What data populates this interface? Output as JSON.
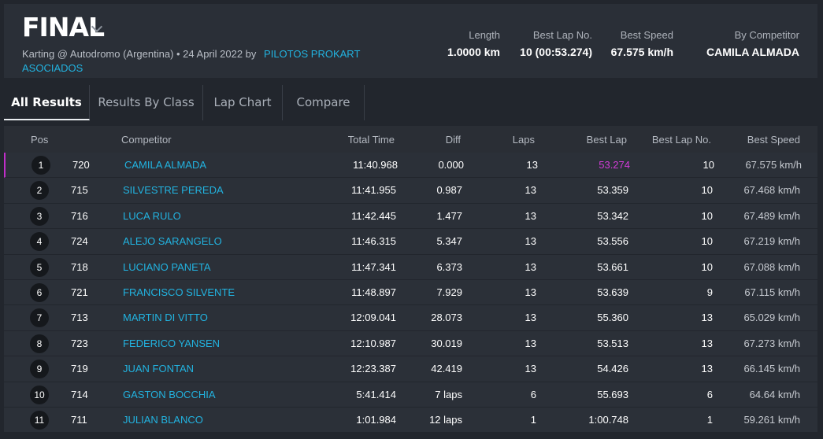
{
  "header": {
    "title": "FINAL",
    "subtitle": "Karting @ Autodromo (Argentina) • 24 April 2022 by",
    "organizer": "PILOTOS PROKART ASOCIADOS",
    "stats": [
      {
        "label": "Length",
        "value": "1.0000 km"
      },
      {
        "label": "Best Lap No.",
        "value": "10 (00:53.274)"
      },
      {
        "label": "Best Speed",
        "value": "67.575 km/h"
      },
      {
        "label": "By Competitor",
        "value": "CAMILA ALMADA"
      }
    ]
  },
  "tabs": [
    "All Results",
    "Results By Class",
    "Lap Chart",
    "Compare"
  ],
  "columns": {
    "pos": "Pos",
    "competitor": "Competitor",
    "total": "Total Time",
    "diff": "Diff",
    "laps": "Laps",
    "best": "Best Lap",
    "bestno": "Best Lap No.",
    "speed": "Best Speed"
  },
  "rows": [
    {
      "pos": "1",
      "num": "720",
      "name": "CAMILA ALMADA",
      "total": "11:40.968",
      "diff": "0.000",
      "laps": "13",
      "best": "53.274",
      "bestno": "10",
      "speed": "67.575 km/h"
    },
    {
      "pos": "2",
      "num": "715",
      "name": "SILVESTRE PEREDA",
      "total": "11:41.955",
      "diff": "0.987",
      "laps": "13",
      "best": "53.359",
      "bestno": "10",
      "speed": "67.468 km/h"
    },
    {
      "pos": "3",
      "num": "716",
      "name": "LUCA RULO",
      "total": "11:42.445",
      "diff": "1.477",
      "laps": "13",
      "best": "53.342",
      "bestno": "10",
      "speed": "67.489 km/h"
    },
    {
      "pos": "4",
      "num": "724",
      "name": "ALEJO SARANGELO",
      "total": "11:46.315",
      "diff": "5.347",
      "laps": "13",
      "best": "53.556",
      "bestno": "10",
      "speed": "67.219 km/h"
    },
    {
      "pos": "5",
      "num": "718",
      "name": "LUCIANO PANETA",
      "total": "11:47.341",
      "diff": "6.373",
      "laps": "13",
      "best": "53.661",
      "bestno": "10",
      "speed": "67.088 km/h"
    },
    {
      "pos": "6",
      "num": "721",
      "name": "FRANCISCO SILVENTE",
      "total": "11:48.897",
      "diff": "7.929",
      "laps": "13",
      "best": "53.639",
      "bestno": "9",
      "speed": "67.115 km/h"
    },
    {
      "pos": "7",
      "num": "713",
      "name": "MARTIN DI VITTO",
      "total": "12:09.041",
      "diff": "28.073",
      "laps": "13",
      "best": "55.360",
      "bestno": "13",
      "speed": "65.029 km/h"
    },
    {
      "pos": "8",
      "num": "723",
      "name": "FEDERICO YANSEN",
      "total": "12:10.987",
      "diff": "30.019",
      "laps": "13",
      "best": "53.513",
      "bestno": "13",
      "speed": "67.273 km/h"
    },
    {
      "pos": "9",
      "num": "719",
      "name": "JUAN FONTAN",
      "total": "12:23.387",
      "diff": "42.419",
      "laps": "13",
      "best": "54.426",
      "bestno": "13",
      "speed": "66.145 km/h"
    },
    {
      "pos": "10",
      "num": "714",
      "name": "GASTON BOCCHIA",
      "total": "5:41.414",
      "diff": "7 laps",
      "laps": "6",
      "best": "55.693",
      "bestno": "6",
      "speed": "64.64 km/h"
    },
    {
      "pos": "11",
      "num": "711",
      "name": "JULIAN BLANCO",
      "total": "1:01.984",
      "diff": "12 laps",
      "laps": "1",
      "best": "1:00.748",
      "bestno": "1",
      "speed": "59.261 km/h"
    }
  ],
  "colors": {
    "accent": "#22b3e0",
    "best_lap": "#d23cd8",
    "background": "#22262d"
  }
}
